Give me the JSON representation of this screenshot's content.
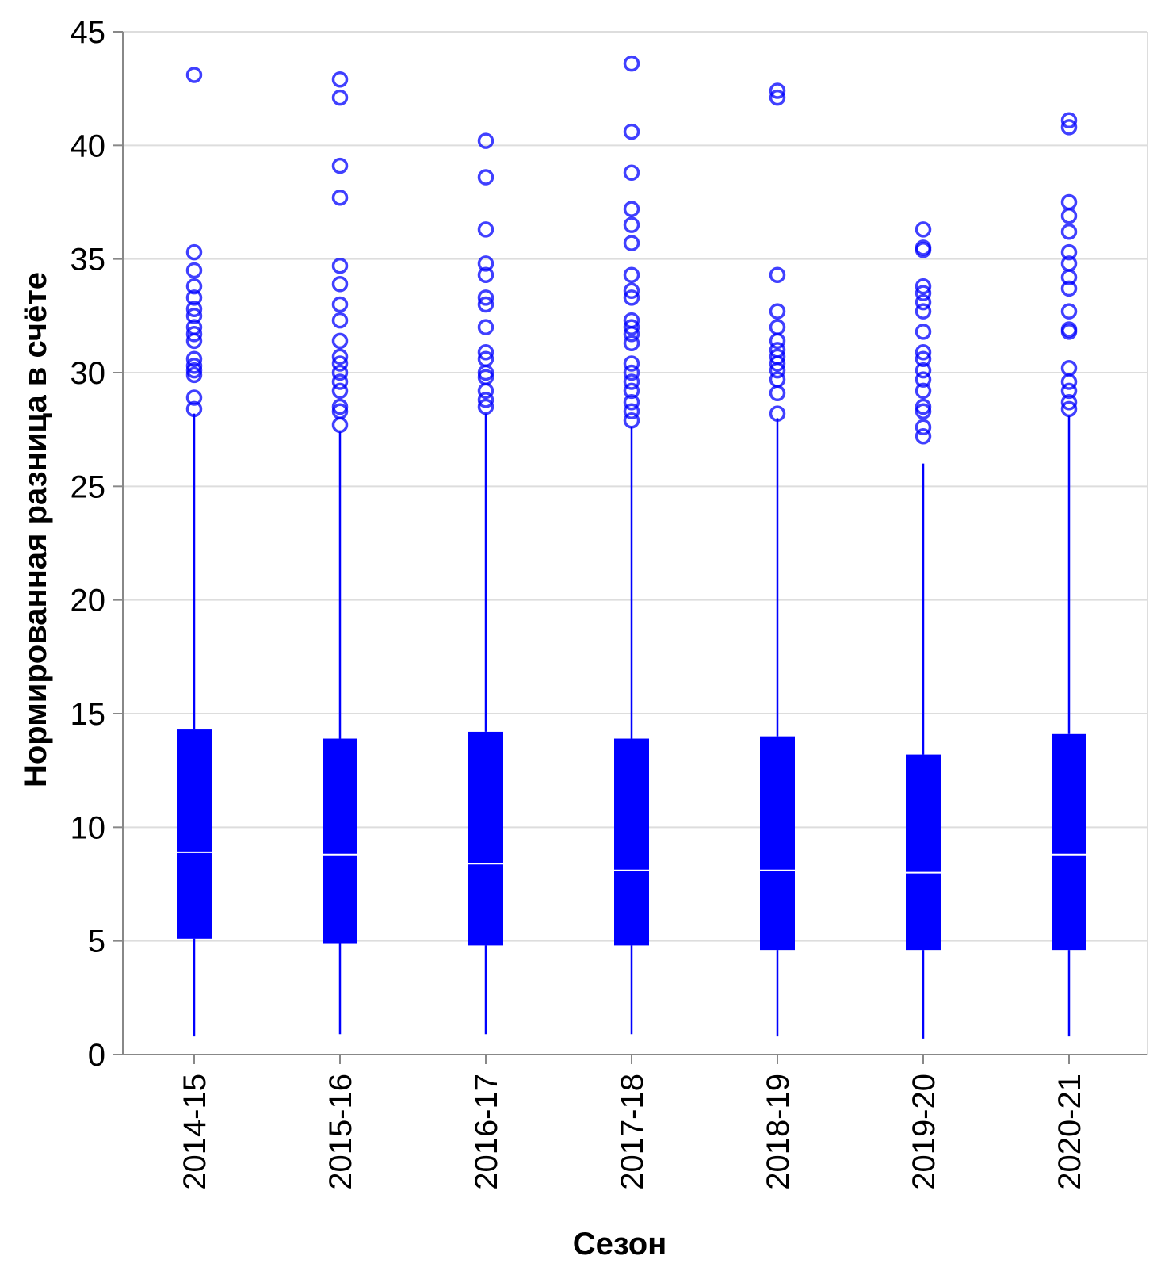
{
  "chart_data": {
    "type": "box",
    "xlabel": "Сезон",
    "ylabel": "Нормированная разница в счёте",
    "ylim": [
      0,
      45
    ],
    "yticks": [
      0,
      5,
      10,
      15,
      20,
      25,
      30,
      35,
      40,
      45
    ],
    "grid": true,
    "color": "#0000ff",
    "categories": [
      "2014-15",
      "2015-16",
      "2016-17",
      "2017-18",
      "2018-19",
      "2019-20",
      "2020-21"
    ],
    "boxes": [
      {
        "category": "2014-15",
        "whisker_low": 0.8,
        "q1": 5.1,
        "median": 8.9,
        "q3": 14.3,
        "whisker_high": 28.2,
        "outliers": [
          28.4,
          28.9,
          29.9,
          30.1,
          30.3,
          30.6,
          31.4,
          31.7,
          32.0,
          32.5,
          32.8,
          33.3,
          33.8,
          34.5,
          35.3,
          43.1
        ]
      },
      {
        "category": "2015-16",
        "whisker_low": 0.9,
        "q1": 4.9,
        "median": 8.8,
        "q3": 13.9,
        "whisker_high": 27.4,
        "outliers": [
          27.7,
          28.3,
          28.5,
          29.2,
          29.6,
          30.0,
          30.4,
          30.7,
          31.4,
          32.3,
          33.0,
          33.9,
          34.7,
          37.7,
          39.1,
          42.1,
          42.9
        ]
      },
      {
        "category": "2016-17",
        "whisker_low": 0.9,
        "q1": 4.8,
        "median": 8.4,
        "q3": 14.2,
        "whisker_high": 28.2,
        "outliers": [
          28.5,
          28.8,
          29.2,
          29.8,
          30.0,
          30.6,
          30.9,
          32.0,
          33.0,
          33.3,
          34.3,
          34.8,
          36.3,
          38.6,
          40.2
        ]
      },
      {
        "category": "2017-18",
        "whisker_low": 0.9,
        "q1": 4.8,
        "median": 8.1,
        "q3": 13.9,
        "whisker_high": 27.6,
        "outliers": [
          27.9,
          28.3,
          28.7,
          29.2,
          29.6,
          30.0,
          30.4,
          31.3,
          31.7,
          32.0,
          32.3,
          33.3,
          33.6,
          34.3,
          35.7,
          36.5,
          37.2,
          38.8,
          40.6,
          43.6
        ]
      },
      {
        "category": "2018-19",
        "whisker_low": 0.8,
        "q1": 4.6,
        "median": 8.1,
        "q3": 14.0,
        "whisker_high": 28.0,
        "outliers": [
          28.2,
          29.1,
          29.7,
          30.1,
          30.4,
          30.7,
          31.0,
          31.4,
          32.0,
          32.7,
          34.3,
          42.1,
          42.4
        ]
      },
      {
        "category": "2019-20",
        "whisker_low": 0.7,
        "q1": 4.6,
        "median": 8.0,
        "q3": 13.2,
        "whisker_high": 26.0,
        "outliers": [
          27.2,
          27.6,
          28.3,
          28.5,
          29.2,
          29.7,
          30.1,
          30.6,
          30.9,
          31.8,
          32.7,
          33.1,
          33.5,
          33.8,
          35.4,
          35.5,
          36.3
        ]
      },
      {
        "category": "2020-21",
        "whisker_low": 0.8,
        "q1": 4.6,
        "median": 8.8,
        "q3": 14.1,
        "whisker_high": 28.1,
        "outliers": [
          28.4,
          28.7,
          29.2,
          29.6,
          30.2,
          31.8,
          31.9,
          32.7,
          33.7,
          34.2,
          34.8,
          35.3,
          36.2,
          36.9,
          37.5,
          40.8,
          41.1
        ]
      }
    ]
  }
}
